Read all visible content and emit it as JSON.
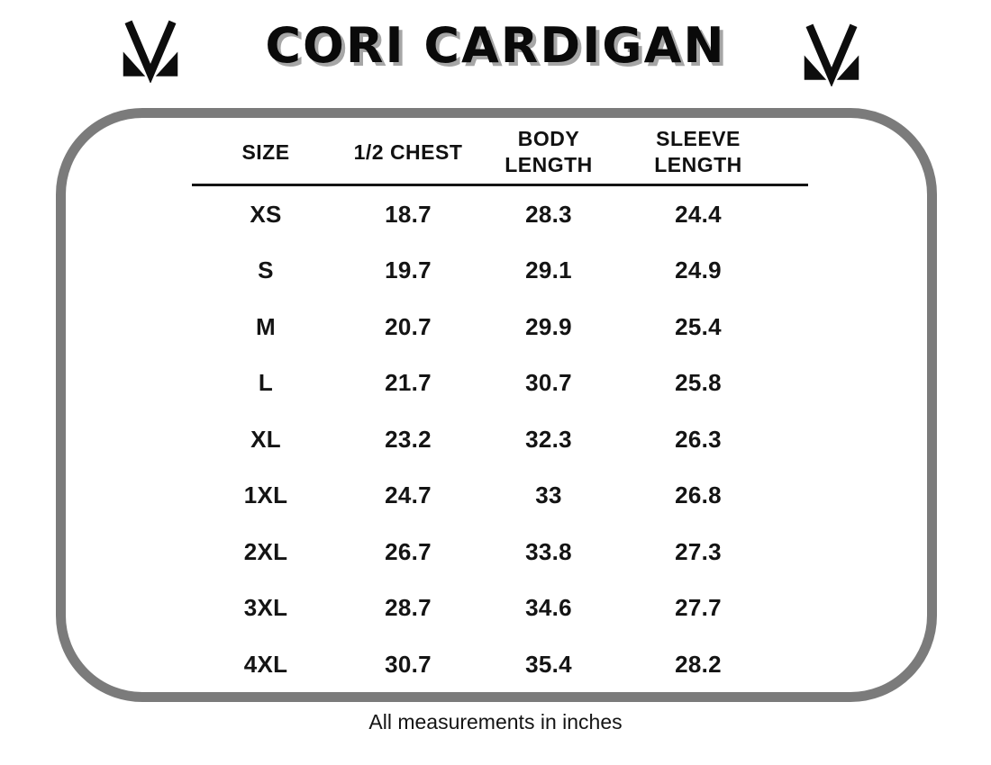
{
  "title": "CORI CARDIGAN",
  "footer_note": "All measurements in inches",
  "logo": "brand-m-monogram",
  "colors": {
    "frame_border": "#7b7b7b",
    "title_shadow": "#a6a6a6",
    "text": "#141414",
    "background": "#ffffff"
  },
  "table": {
    "columns": [
      {
        "key": "size",
        "label": "SIZE"
      },
      {
        "key": "half_chest",
        "label": "1/2 CHEST"
      },
      {
        "key": "body_length",
        "label": "BODY\nLENGTH"
      },
      {
        "key": "sleeve_length",
        "label": "SLEEVE\nLENGTH"
      }
    ],
    "rows": [
      {
        "size": "XS",
        "half_chest": "18.7",
        "body_length": "28.3",
        "sleeve_length": "24.4"
      },
      {
        "size": "S",
        "half_chest": "19.7",
        "body_length": "29.1",
        "sleeve_length": "24.9"
      },
      {
        "size": "M",
        "half_chest": "20.7",
        "body_length": "29.9",
        "sleeve_length": "25.4"
      },
      {
        "size": "L",
        "half_chest": "21.7",
        "body_length": "30.7",
        "sleeve_length": "25.8"
      },
      {
        "size": "XL",
        "half_chest": "23.2",
        "body_length": "32.3",
        "sleeve_length": "26.3"
      },
      {
        "size": "1XL",
        "half_chest": "24.7",
        "body_length": "33",
        "sleeve_length": "26.8"
      },
      {
        "size": "2XL",
        "half_chest": "26.7",
        "body_length": "33.8",
        "sleeve_length": "27.3"
      },
      {
        "size": "3XL",
        "half_chest": "28.7",
        "body_length": "34.6",
        "sleeve_length": "27.7"
      },
      {
        "size": "4XL",
        "half_chest": "30.7",
        "body_length": "35.4",
        "sleeve_length": "28.2"
      }
    ]
  },
  "chart_data": {
    "type": "table",
    "title": "CORI CARDIGAN",
    "columns": [
      "SIZE",
      "1/2 CHEST",
      "BODY LENGTH",
      "SLEEVE LENGTH"
    ],
    "rows": [
      [
        "XS",
        18.7,
        28.3,
        24.4
      ],
      [
        "S",
        19.7,
        29.1,
        24.9
      ],
      [
        "M",
        20.7,
        29.9,
        25.4
      ],
      [
        "L",
        21.7,
        30.7,
        25.8
      ],
      [
        "XL",
        23.2,
        32.3,
        26.3
      ],
      [
        "1XL",
        24.7,
        33,
        26.8
      ],
      [
        "2XL",
        26.7,
        33.8,
        27.3
      ],
      [
        "3XL",
        28.7,
        34.6,
        27.7
      ],
      [
        "4XL",
        30.7,
        35.4,
        28.2
      ]
    ],
    "units": "inches",
    "note": "All measurements in inches"
  }
}
